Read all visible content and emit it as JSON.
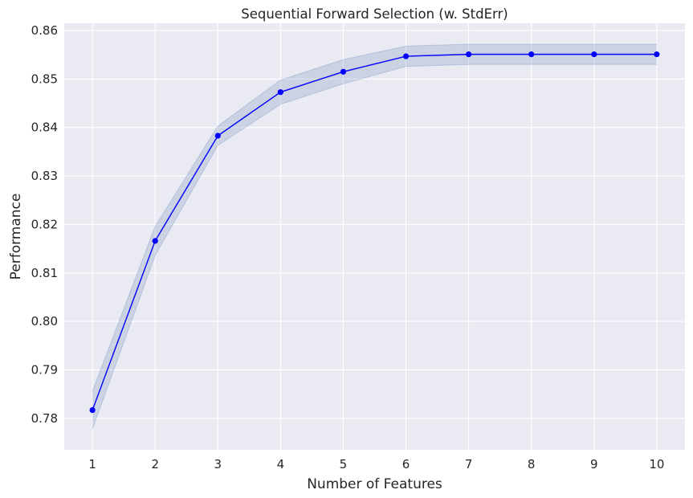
{
  "chart_data": {
    "type": "line",
    "title": "Sequential Forward Selection (w. StdErr)",
    "xlabel": "Number of Features",
    "ylabel": "Performance",
    "x": [
      1,
      2,
      3,
      4,
      5,
      6,
      7,
      8,
      9,
      10
    ],
    "x_tick_labels": [
      "1",
      "2",
      "3",
      "4",
      "5",
      "6",
      "7",
      "8",
      "9",
      "10"
    ],
    "y_ticks": [
      0.78,
      0.79,
      0.8,
      0.81,
      0.82,
      0.83,
      0.84,
      0.85,
      0.86
    ],
    "y_tick_labels": [
      "0.78",
      "0.79",
      "0.80",
      "0.81",
      "0.82",
      "0.83",
      "0.84",
      "0.85",
      "0.86"
    ],
    "xlim": [
      0.55,
      10.45
    ],
    "ylim": [
      0.7735,
      0.8615
    ],
    "grid": true,
    "series": [
      {
        "values": [
          0.7817,
          0.8166,
          0.8383,
          0.8473,
          0.8515,
          0.8547,
          0.8551,
          0.8551,
          0.8551,
          0.8551
        ],
        "std_err_upper": [
          0.7856,
          0.8196,
          0.8403,
          0.8498,
          0.854,
          0.8568,
          0.8572,
          0.8572,
          0.8572,
          0.8572
        ],
        "std_err_lower": [
          0.7778,
          0.8136,
          0.8363,
          0.8448,
          0.849,
          0.8526,
          0.853,
          0.853,
          0.853,
          0.853
        ]
      }
    ],
    "colors": {
      "line": "#0000ff",
      "band": "#4c72b0",
      "plot_background": "#eaeaf2",
      "grid": "#ffffff"
    }
  }
}
